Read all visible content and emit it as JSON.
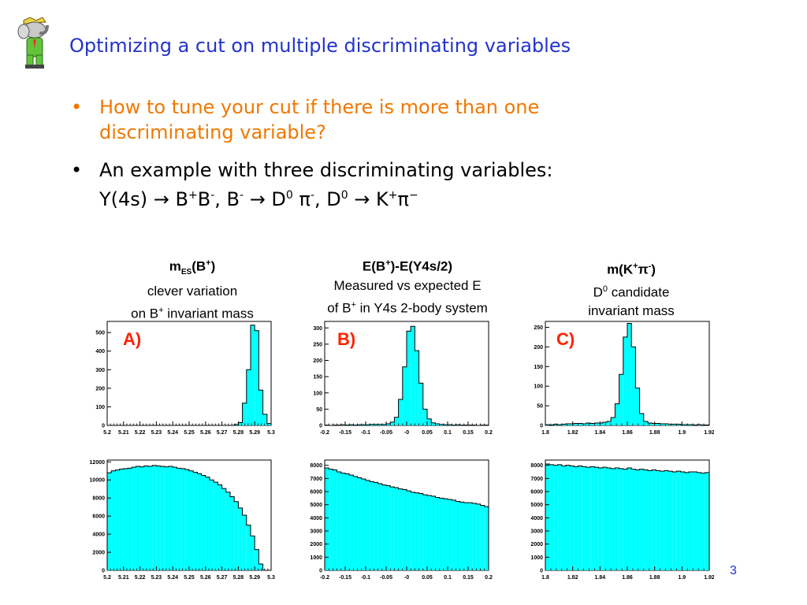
{
  "slide": {
    "title": "Optimizing a cut on multiple discriminating variables",
    "bullets": [
      {
        "text": "How to tune your cut if there is more than one discriminating variable?",
        "color": "#f07800"
      },
      {
        "line1": "An example with three discriminating variables:",
        "line2_html": "Y(4s) → B<sup>+</sup>B<sup>-</sup>, B<sup>-</sup> → D<sup>0</sup> π<sup>-</sup>, D<sup>0</sup> → K<sup>+</sup>π<sup>−</sup>"
      }
    ],
    "page_number": "3",
    "logo_icon": "elephant-mascot-icon"
  },
  "columns": [
    {
      "head_html": "m<sub>ES</sub>(B<sup>+</sup>)",
      "line2": "clever variation",
      "line3_html": "on B<sup>+</sup> invariant mass"
    },
    {
      "head_html": "E(B<sup>+</sup>)-E(Y4s/2)",
      "line2": "Measured vs expected E",
      "line3_html": "of B<sup>+</sup> in Y4s 2-body system"
    },
    {
      "head_html": "m(K<sup>+</sup>π<sup>-</sup>)",
      "line2_html": "D<sup>0</sup> candidate",
      "line3": "invariant mass"
    }
  ],
  "plot_labels": [
    "A)",
    "B)",
    "C)"
  ],
  "chart_data": [
    {
      "type": "bar",
      "panel": "A-signal",
      "xlim": [
        5.2,
        5.3
      ],
      "ylim": [
        0,
        560
      ],
      "xticks": [
        "5.2",
        "5.21",
        "5.22",
        "5.23",
        "5.24",
        "5.25",
        "5.26",
        "5.27",
        "5.28",
        "5.29",
        "5.3"
      ],
      "yticks": [
        100,
        200,
        300,
        400,
        500
      ],
      "bins_x0": 5.2,
      "bin_width": 0.0025,
      "values": [
        0,
        0,
        0,
        0,
        0,
        0,
        0,
        0,
        0,
        0,
        0,
        0,
        0,
        0,
        0,
        0,
        0,
        0,
        0,
        0,
        0,
        0,
        0,
        0,
        0,
        0,
        0,
        0,
        0,
        0,
        0,
        5,
        15,
        120,
        300,
        540,
        510,
        190,
        60,
        10
      ]
    },
    {
      "type": "bar",
      "panel": "B-signal",
      "xlim": [
        -0.2,
        0.2
      ],
      "ylim": [
        0,
        320
      ],
      "xticks": [
        "-0.2",
        "-0.15",
        "-0.1",
        "-0.05",
        "-0",
        "0.05",
        "0.1",
        "0.15",
        "0.2"
      ],
      "yticks": [
        50,
        100,
        150,
        200,
        250,
        300
      ],
      "bins_x0": -0.2,
      "bin_width": 0.01,
      "values": [
        1,
        0,
        1,
        1,
        2,
        1,
        2,
        1,
        2,
        2,
        2,
        3,
        3,
        3,
        3,
        5,
        10,
        25,
        80,
        180,
        290,
        305,
        230,
        130,
        50,
        20,
        8,
        5,
        3,
        2,
        2,
        1,
        2,
        1,
        1,
        1,
        1,
        0,
        1,
        1
      ]
    },
    {
      "type": "bar",
      "panel": "C-signal",
      "xlim": [
        1.8,
        1.92
      ],
      "ylim": [
        0,
        265
      ],
      "xticks": [
        "1.8",
        "1.82",
        "1.84",
        "1.86",
        "1.88",
        "1.9",
        "1.92"
      ],
      "yticks": [
        50,
        100,
        150,
        200,
        250
      ],
      "bins_x0": 1.8,
      "bin_width": 0.003,
      "values": [
        2,
        1,
        3,
        2,
        3,
        4,
        4,
        5,
        5,
        4,
        6,
        5,
        6,
        6,
        8,
        10,
        20,
        55,
        130,
        225,
        260,
        200,
        95,
        30,
        10,
        6,
        5,
        5,
        4,
        4,
        3,
        3,
        3,
        2,
        2,
        2,
        1,
        2,
        1,
        1
      ]
    },
    {
      "type": "bar",
      "panel": "A-background",
      "xlim": [
        5.2,
        5.3
      ],
      "ylim": [
        0,
        12200
      ],
      "xticks": [
        "5.2",
        "5.21",
        "5.22",
        "5.23",
        "5.24",
        "5.25",
        "5.26",
        "5.27",
        "5.28",
        "5.29",
        "5.3"
      ],
      "yticks": [
        2000,
        4000,
        6000,
        8000,
        10000,
        12000
      ],
      "bins_x0": 5.2,
      "bin_width": 0.0025,
      "values": [
        10800,
        11000,
        11100,
        11200,
        11250,
        11300,
        11400,
        11500,
        11450,
        11550,
        11500,
        11600,
        11550,
        11500,
        11450,
        11500,
        11400,
        11300,
        11250,
        11150,
        11000,
        10850,
        10700,
        10500,
        10300,
        10000,
        9750,
        9450,
        9050,
        8650,
        8150,
        7600,
        6900,
        6100,
        5000,
        3800,
        2300,
        700,
        0,
        0
      ]
    },
    {
      "type": "bar",
      "panel": "B-background",
      "xlim": [
        -0.2,
        0.2
      ],
      "ylim": [
        0,
        8400
      ],
      "xticks": [
        "-0.2",
        "-0.15",
        "-0.1",
        "-0.05",
        "-0",
        "0.05",
        "0.1",
        "0.15",
        "0.2"
      ],
      "yticks": [
        1000,
        2000,
        3000,
        4000,
        5000,
        6000,
        7000,
        8000
      ],
      "bins_x0": -0.2,
      "bin_width": 0.01,
      "values": [
        7800,
        7700,
        7650,
        7500,
        7400,
        7350,
        7250,
        7150,
        7050,
        6950,
        6850,
        6750,
        6700,
        6600,
        6500,
        6450,
        6350,
        6300,
        6200,
        6150,
        6050,
        5950,
        5900,
        5850,
        5750,
        5700,
        5650,
        5550,
        5500,
        5450,
        5400,
        5350,
        5250,
        5200,
        5150,
        5150,
        5100,
        5050,
        4950,
        4850
      ]
    },
    {
      "type": "bar",
      "panel": "C-background",
      "xlim": [
        1.8,
        1.92
      ],
      "ylim": [
        0,
        8400
      ],
      "xticks": [
        "1.8",
        "1.82",
        "1.84",
        "1.86",
        "1.88",
        "1.9",
        "1.92"
      ],
      "yticks": [
        1000,
        2000,
        3000,
        4000,
        5000,
        6000,
        7000,
        8000
      ],
      "bins_x0": 1.8,
      "bin_width": 0.003,
      "values": [
        8100,
        8050,
        8000,
        8050,
        7950,
        8000,
        7950,
        7900,
        7950,
        7900,
        7850,
        7900,
        7850,
        7800,
        7850,
        7800,
        7750,
        7800,
        7750,
        7700,
        7800,
        7700,
        7650,
        7700,
        7650,
        7600,
        7650,
        7600,
        7550,
        7600,
        7550,
        7500,
        7550,
        7500,
        7450,
        7500,
        7500,
        7450,
        7400,
        7450
      ]
    }
  ]
}
